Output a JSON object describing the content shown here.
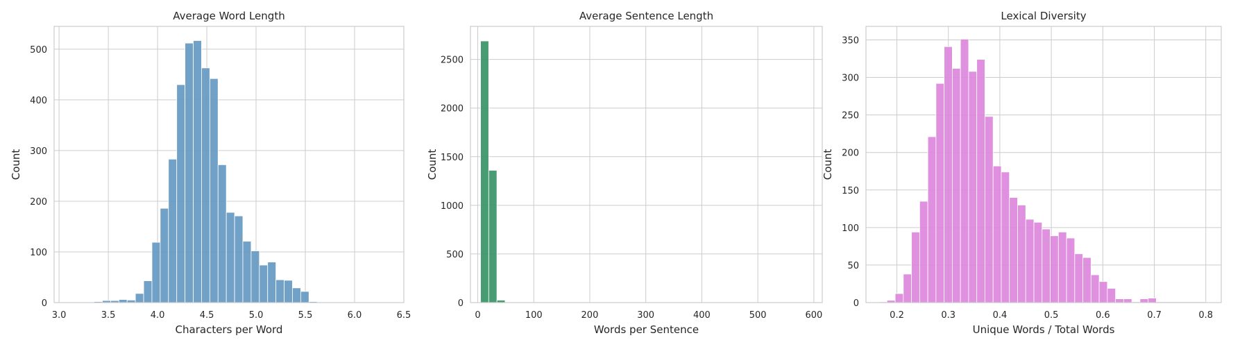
{
  "chart_data": [
    {
      "type": "bar",
      "title": "Average Word Length",
      "xlabel": "Characters per Word",
      "ylabel": "Count",
      "xlim": [
        2.95,
        6.5
      ],
      "ylim": [
        0,
        545
      ],
      "xticks": [
        3.0,
        3.5,
        4.0,
        4.5,
        5.0,
        5.5,
        6.0,
        6.5
      ],
      "xtick_labels": [
        "3.0",
        "3.5",
        "4.0",
        "4.5",
        "5.0",
        "5.5",
        "6.0",
        "6.5"
      ],
      "yticks": [
        0,
        100,
        200,
        300,
        400,
        500
      ],
      "ytick_labels": [
        "0",
        "100",
        "200",
        "300",
        "400",
        "500"
      ],
      "bin_start": 3.02,
      "bin_width": 0.0839,
      "values": [
        1,
        0,
        0,
        1,
        2,
        4,
        4,
        6,
        5,
        18,
        43,
        119,
        186,
        283,
        430,
        512,
        517,
        463,
        442,
        272,
        178,
        171,
        121,
        102,
        74,
        80,
        45,
        44,
        29,
        22,
        2,
        1,
        1,
        0,
        1,
        0,
        1,
        0,
        0,
        1
      ],
      "color": "#6699c2",
      "grid": true
    },
    {
      "type": "bar",
      "title": "Average Sentence Length",
      "xlabel": "Words per Sentence",
      "ylabel": "Count",
      "xlim": [
        -13,
        615
      ],
      "ylim": [
        0,
        2840
      ],
      "xticks": [
        0,
        100,
        200,
        300,
        400,
        500,
        600
      ],
      "xtick_labels": [
        "0",
        "100",
        "200",
        "300",
        "400",
        "500",
        "600"
      ],
      "yticks": [
        0,
        500,
        1000,
        1500,
        2000,
        2500
      ],
      "ytick_labels": [
        "0",
        "500",
        "1000",
        "1500",
        "2000",
        "2500"
      ],
      "bin_start": 5,
      "bin_width": 14.6,
      "values": [
        2690,
        1360,
        25,
        3,
        2,
        1,
        1,
        1,
        1,
        0,
        1,
        0,
        0,
        1,
        0,
        0,
        0,
        1,
        0,
        0,
        1,
        0,
        0,
        0,
        1,
        0,
        0,
        0,
        0,
        1,
        0,
        0,
        0,
        0,
        0,
        1,
        0,
        0,
        0,
        1
      ],
      "color": "#3a9368",
      "grid": true
    },
    {
      "type": "bar",
      "title": "Lexical Diversity",
      "xlabel": "Unique Words / Total Words",
      "ylabel": "Count",
      "xlim": [
        0.14,
        0.83
      ],
      "ylim": [
        0,
        368
      ],
      "xticks": [
        0.2,
        0.3,
        0.4,
        0.5,
        0.6,
        0.7,
        0.8
      ],
      "xtick_labels": [
        "0.2",
        "0.3",
        "0.4",
        "0.5",
        "0.6",
        "0.7",
        "0.8"
      ],
      "yticks": [
        0,
        50,
        100,
        150,
        200,
        250,
        300,
        350
      ],
      "ytick_labels": [
        "0",
        "50",
        "100",
        "150",
        "200",
        "250",
        "300",
        "350"
      ],
      "bin_start": 0.165,
      "bin_width": 0.01585,
      "values": [
        1,
        3,
        12,
        38,
        94,
        135,
        221,
        292,
        341,
        312,
        351,
        308,
        324,
        248,
        182,
        174,
        140,
        130,
        111,
        107,
        98,
        89,
        94,
        86,
        65,
        60,
        37,
        28,
        19,
        5,
        5,
        1,
        5,
        6,
        1,
        1,
        1,
        1,
        1,
        1
      ],
      "color": "#dc87dc",
      "grid": true
    }
  ]
}
